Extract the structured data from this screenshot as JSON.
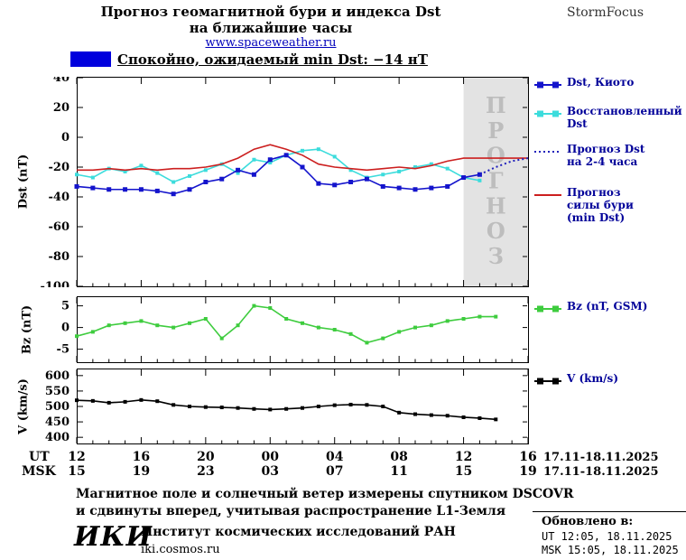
{
  "colors": {
    "kyoto_blue": "#1414cc",
    "restored_cyan": "#3cdcdc",
    "forecast_blue": "#2020bb",
    "storm_red": "#cc1f1f",
    "bz_green": "#3ecc3e",
    "v_black": "#000000",
    "legend_text": "#000099",
    "banner_swatch": "#0000dd",
    "link_blue": "#0000bb",
    "forecast_bg": "#e3e3e3",
    "forecast_label_gray": "#bdbdbd"
  },
  "header": {
    "title_line1": "Прогноз геомагнитной бури и индекса Dst",
    "title_line2": "на ближайшие часы",
    "site_link": "www.spaceweather.ru",
    "brand": "StormFocus"
  },
  "status_banner": {
    "label": "Спокойно, ожидаемый min Dst: −14 нТ"
  },
  "chart_data": [
    {
      "type": "line",
      "ylabel": "Dst (nT)",
      "ylim": [
        -100,
        40
      ],
      "yticks": [
        40,
        20,
        0,
        -20,
        -40,
        -60,
        -80,
        -100
      ],
      "xlim": [
        0,
        28
      ],
      "x_unit": "hours from 17.11 12:00 UT",
      "forecast_region": {
        "from": 24,
        "to": 28,
        "label": "ПРОГНОЗ"
      },
      "series": [
        {
          "name": "Восстановленный Dst",
          "color": "#3cdcdc",
          "marker": "square",
          "marker_size": 4,
          "x": [
            0,
            1,
            2,
            3,
            4,
            5,
            6,
            7,
            8,
            9,
            10,
            11,
            12,
            13,
            14,
            15,
            16,
            17,
            18,
            19,
            20,
            21,
            22,
            23,
            24,
            25
          ],
          "y": [
            -25,
            -27,
            -21,
            -23,
            -19,
            -24,
            -30,
            -26,
            -22,
            -18,
            -24,
            -15,
            -17,
            -12,
            -9,
            -8,
            -13,
            -22,
            -27,
            -25,
            -23,
            -20,
            -18,
            -21,
            -27,
            -29
          ]
        },
        {
          "name": "Прогноз силы бури (min Dst)",
          "color": "#cc1f1f",
          "x": [
            0,
            1,
            2,
            3,
            4,
            5,
            6,
            7,
            8,
            9,
            10,
            11,
            12,
            13,
            14,
            15,
            16,
            17,
            18,
            19,
            20,
            21,
            22,
            23,
            24,
            25,
            26,
            27,
            28
          ],
          "y": [
            -22,
            -22,
            -21,
            -22,
            -21,
            -22,
            -21,
            -21,
            -20,
            -18,
            -14,
            -8,
            -5,
            -8,
            -12,
            -18,
            -20,
            -21,
            -22,
            -21,
            -20,
            -21,
            -19,
            -16,
            -14,
            -14,
            -14,
            -14,
            -14
          ]
        },
        {
          "name": "Dst, Киото",
          "color": "#1414cc",
          "marker": "square",
          "marker_size": 5,
          "x": [
            0,
            1,
            2,
            3,
            4,
            5,
            6,
            7,
            8,
            9,
            10,
            11,
            12,
            13,
            14,
            15,
            16,
            17,
            18,
            19,
            20,
            21,
            22,
            23,
            24,
            25
          ],
          "y": [
            -33,
            -34,
            -35,
            -35,
            -35,
            -36,
            -38,
            -35,
            -30,
            -28,
            -22,
            -25,
            -15,
            -12,
            -20,
            -31,
            -32,
            -30,
            -28,
            -33,
            -34,
            -35,
            -34,
            -33,
            -27,
            -25
          ]
        },
        {
          "name": "Прогноз Dst на 2-4 часа",
          "color": "#2020bb",
          "style": "dotted",
          "x": [
            25,
            26,
            27,
            28
          ],
          "y": [
            -25,
            -20,
            -16,
            -14
          ]
        }
      ]
    },
    {
      "type": "line",
      "ylabel": "Bz (nT)",
      "ylim": [
        -8,
        7
      ],
      "yticks": [
        5,
        0,
        -5
      ],
      "xlim": [
        0,
        28
      ],
      "series": [
        {
          "name": "Bz (nT, GSM)",
          "color": "#3ecc3e",
          "marker": "square",
          "marker_size": 4,
          "x": [
            0,
            1,
            2,
            3,
            4,
            5,
            6,
            7,
            8,
            9,
            10,
            11,
            12,
            13,
            14,
            15,
            16,
            17,
            18,
            19,
            20,
            21,
            22,
            23,
            24,
            25,
            26
          ],
          "y": [
            -2,
            -1,
            0.5,
            1,
            1.5,
            0.5,
            0,
            1,
            2,
            -2.5,
            0.5,
            5,
            4.5,
            2,
            1,
            0,
            -0.5,
            -1.5,
            -3.5,
            -2.5,
            -1,
            0,
            0.5,
            1.5,
            2,
            2.5,
            2.5
          ]
        }
      ]
    },
    {
      "type": "line",
      "ylabel": "V (km/s)",
      "ylim": [
        380,
        620
      ],
      "yticks": [
        600,
        550,
        500,
        450,
        400
      ],
      "xlim": [
        0,
        28
      ],
      "series": [
        {
          "name": "V (km/s)",
          "color": "#000000",
          "marker": "square",
          "marker_size": 4,
          "x": [
            0,
            1,
            2,
            3,
            4,
            5,
            6,
            7,
            8,
            9,
            10,
            11,
            12,
            13,
            14,
            15,
            16,
            17,
            18,
            19,
            20,
            21,
            22,
            23,
            24,
            25,
            26
          ],
          "y": [
            520,
            518,
            512,
            515,
            521,
            517,
            505,
            500,
            498,
            497,
            495,
            492,
            490,
            492,
            495,
            500,
            504,
            506,
            505,
            500,
            480,
            475,
            472,
            470,
            465,
            462,
            458
          ]
        }
      ]
    }
  ],
  "xaxis": {
    "tick_positions": [
      0,
      4,
      8,
      12,
      16,
      20,
      24,
      28
    ],
    "ut_label": "UT",
    "msk_label": "MSK",
    "ut_ticks": [
      "12",
      "16",
      "20",
      "00",
      "04",
      "08",
      "12",
      "16"
    ],
    "msk_ticks": [
      "15",
      "19",
      "23",
      "03",
      "07",
      "11",
      "15",
      "19"
    ],
    "ut_daterange": "17.11-18.11.2025",
    "msk_daterange": "17.11-18.11.2025"
  },
  "legends": {
    "dst_kyoto": {
      "lines": [
        "Dst, Киото"
      ]
    },
    "restored": {
      "lines": [
        "Восстановленный",
        "Dst"
      ]
    },
    "forecast_dst": {
      "lines": [
        "Прогноз Dst",
        "на 2-4 часа"
      ]
    },
    "storm": {
      "lines": [
        "Прогноз",
        "силы бури",
        "(min Dst)"
      ]
    },
    "bz": {
      "lines": [
        "Bz (nT, GSM)"
      ]
    },
    "v": {
      "lines": [
        "V (km/s)"
      ]
    }
  },
  "footnote": {
    "line1": "Магнитное поле и солнечный ветер измерены спутником DSCOVR",
    "line2": "и сдвинуты вперед, учитывая распространение L1-Земля"
  },
  "footer": {
    "logo": "ИКИ",
    "institute": "Институт космических исследований РАН",
    "site": "iki.cosmos.ru",
    "updated_label": "Обновлено в:",
    "updated_ut": "UT  12:05, 18.11.2025",
    "updated_msk": "MSK 15:05, 18.11.2025"
  }
}
